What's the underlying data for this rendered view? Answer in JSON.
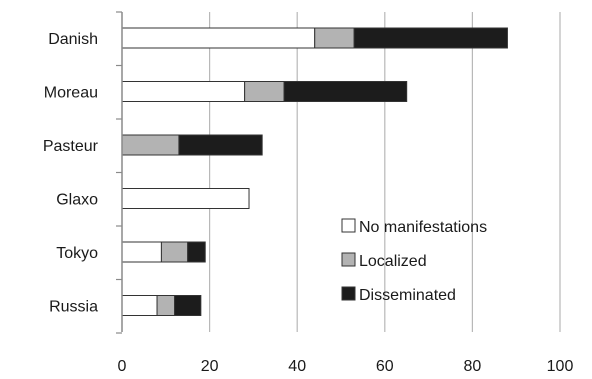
{
  "chart_data": {
    "type": "bar",
    "orientation": "horizontal",
    "stacked": true,
    "categories": [
      "Danish",
      "Moreau",
      "Pasteur",
      "Glaxo",
      "Tokyo",
      "Russia"
    ],
    "series": [
      {
        "name": "No manifestations",
        "values": [
          44,
          28,
          0,
          29,
          9,
          8
        ],
        "color": "#ffffff"
      },
      {
        "name": "Localized",
        "values": [
          9,
          9,
          13,
          0,
          6,
          4
        ],
        "color": "#b3b3b3"
      },
      {
        "name": "Disseminated",
        "values": [
          35,
          28,
          19,
          0,
          4,
          6
        ],
        "color": "#1c1c1c"
      }
    ],
    "x_ticks": [
      "0",
      "20",
      "40",
      "60",
      "80",
      "100"
    ],
    "xlim": [
      0,
      100
    ],
    "grid": "vertical",
    "legend_position": "lower-right",
    "title": "",
    "xlabel": "",
    "ylabel": ""
  }
}
